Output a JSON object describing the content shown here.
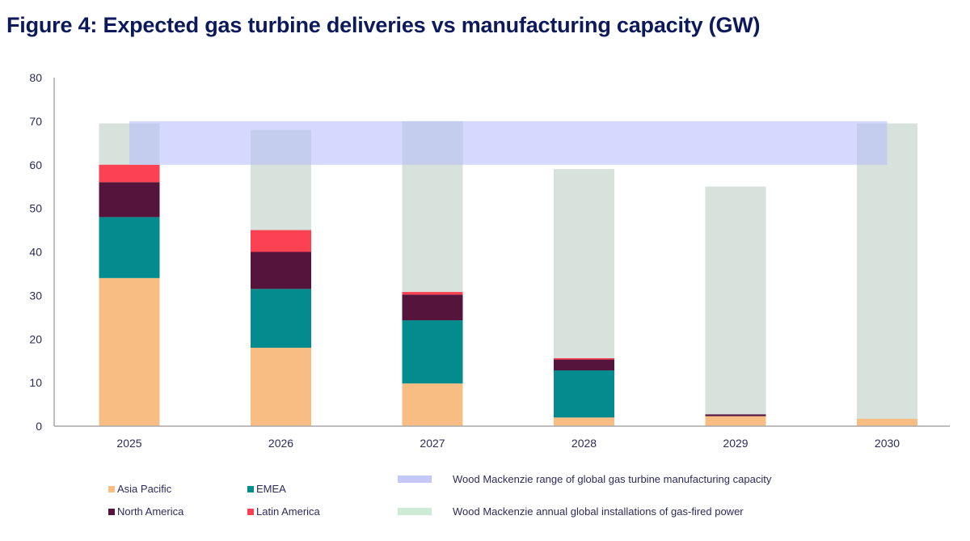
{
  "chart_data": {
    "type": "bar",
    "subtype": "stacked-with-overlays",
    "title": "Figure 4: Expected gas turbine deliveries vs manufacturing capacity (GW)",
    "xlabel": "",
    "ylabel": "",
    "ylim": [
      0,
      80
    ],
    "yticks": [
      "0",
      "10",
      "20",
      "30",
      "40",
      "50",
      "60",
      "70",
      "80"
    ],
    "ytick_values": [
      0,
      10,
      20,
      30,
      40,
      50,
      60,
      70,
      80
    ],
    "grid": false,
    "categories": [
      "2025",
      "2026",
      "2027",
      "2028",
      "2029",
      "2030"
    ],
    "series": [
      {
        "name": "Asia Pacific",
        "color": "#f8bd82",
        "values": [
          34,
          18,
          9.8,
          2,
          2.3,
          1.7
        ]
      },
      {
        "name": "EMEA",
        "color": "#038b8d",
        "values": [
          14,
          13.5,
          14.5,
          10.8,
          0,
          0
        ]
      },
      {
        "name": "North America",
        "color": "#55143c",
        "values": [
          8,
          8.5,
          5.9,
          2.5,
          0.4,
          0
        ]
      },
      {
        "name": "Latin America",
        "color": "#fb4152",
        "values": [
          4,
          5,
          0.6,
          0.3,
          0,
          0
        ]
      }
    ],
    "installations": {
      "name": "Wood Mackenzie annual global installations of gas-fired power",
      "color": "#d7e2dc",
      "legend_color": "#cdebd6",
      "values": [
        69.5,
        68,
        70,
        59,
        55,
        69.5
      ]
    },
    "capacity_range": {
      "name": "Wood Mackenzie range of global gas turbine manufacturing capacity",
      "color": "#b9bffb",
      "opacity": 0.6,
      "low": 60,
      "high": 70,
      "from_category": "2025",
      "to_category": "2030"
    },
    "legend_position": "bottom"
  },
  "legend": {
    "asia_pacific": "Asia Pacific",
    "emea": "EMEA",
    "north_america": "North America",
    "latin_america": "Latin America",
    "capacity": "Wood Mackenzie  range  of global  gas turbine  manufacturing  capacity",
    "installations": "Wood Mackenzie  annual  global  installations  of gas-fired power"
  }
}
